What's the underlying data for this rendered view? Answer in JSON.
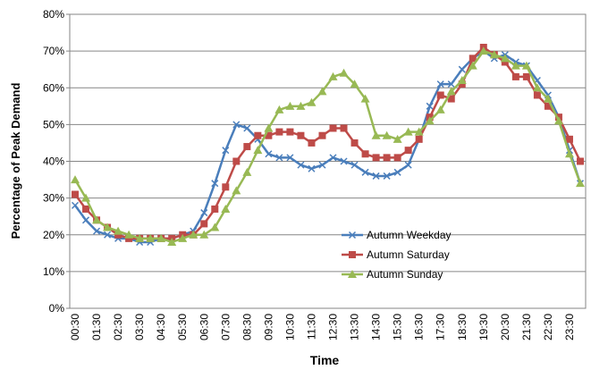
{
  "chart_data": {
    "type": "line",
    "x_label": "Time",
    "y_label": "Percentage of Peak Demand",
    "categories": [
      "00:30",
      null,
      "01:30",
      null,
      "02:30",
      null,
      "03:30",
      null,
      "04:30",
      null,
      "05:30",
      null,
      "06:30",
      null,
      "07:30",
      null,
      "08:30",
      null,
      "09:30",
      null,
      "10:30",
      null,
      "11:30",
      null,
      "12:30",
      null,
      "13:30",
      null,
      "14:30",
      null,
      "15:30",
      null,
      "16:30",
      null,
      "17:30",
      null,
      "18:30",
      null,
      "19:30",
      null,
      "20:30",
      null,
      "21:30",
      null,
      "22:30",
      null,
      "23:30",
      null
    ],
    "series": [
      {
        "name": "Autumn Weekday",
        "color": "#4a7ebb",
        "marker": "x",
        "values": [
          28,
          24,
          21,
          20,
          19,
          19,
          18,
          18,
          19,
          19,
          20,
          21,
          26,
          34,
          43,
          50,
          49,
          46,
          42,
          41,
          41,
          39,
          38,
          39,
          41,
          40,
          39,
          37,
          36,
          36,
          37,
          39,
          46,
          55,
          61,
          61,
          65,
          68,
          70,
          68,
          69,
          67,
          66,
          62,
          58,
          52,
          43,
          34
        ]
      },
      {
        "name": "Autumn Saturday",
        "color": "#be4b48",
        "marker": "square",
        "values": [
          31,
          27,
          24,
          22,
          20,
          19,
          19,
          19,
          19,
          19,
          20,
          20,
          23,
          27,
          33,
          40,
          44,
          47,
          47,
          48,
          48,
          47,
          45,
          47,
          49,
          49,
          45,
          42,
          41,
          41,
          41,
          43,
          46,
          52,
          58,
          57,
          61,
          68,
          71,
          69,
          67,
          63,
          63,
          58,
          55,
          52,
          46,
          40
        ]
      },
      {
        "name": "Autumn Sunday",
        "color": "#98b954",
        "marker": "triangle",
        "values": [
          35,
          30,
          24,
          22,
          21,
          20,
          19,
          19,
          19,
          18,
          19,
          20,
          20,
          22,
          27,
          32,
          37,
          43,
          49,
          54,
          55,
          55,
          56,
          59,
          63,
          64,
          61,
          57,
          47,
          47,
          46,
          48,
          48,
          51,
          54,
          59,
          62,
          66,
          70,
          69,
          68,
          66,
          66,
          60,
          57,
          51,
          42,
          34
        ]
      }
    ],
    "ylim": [
      0,
      80
    ],
    "yticks": [
      {
        "value": 0,
        "label": "0%"
      },
      {
        "value": 10,
        "label": "10%"
      },
      {
        "value": 20,
        "label": "20%"
      },
      {
        "value": 30,
        "label": "30%"
      },
      {
        "value": 40,
        "label": "40%"
      },
      {
        "value": 50,
        "label": "50%"
      },
      {
        "value": 60,
        "label": "60%"
      },
      {
        "value": 70,
        "label": "70%"
      },
      {
        "value": 80,
        "label": "80%"
      }
    ],
    "grid": true,
    "legend_position": "inside-lower-right"
  }
}
